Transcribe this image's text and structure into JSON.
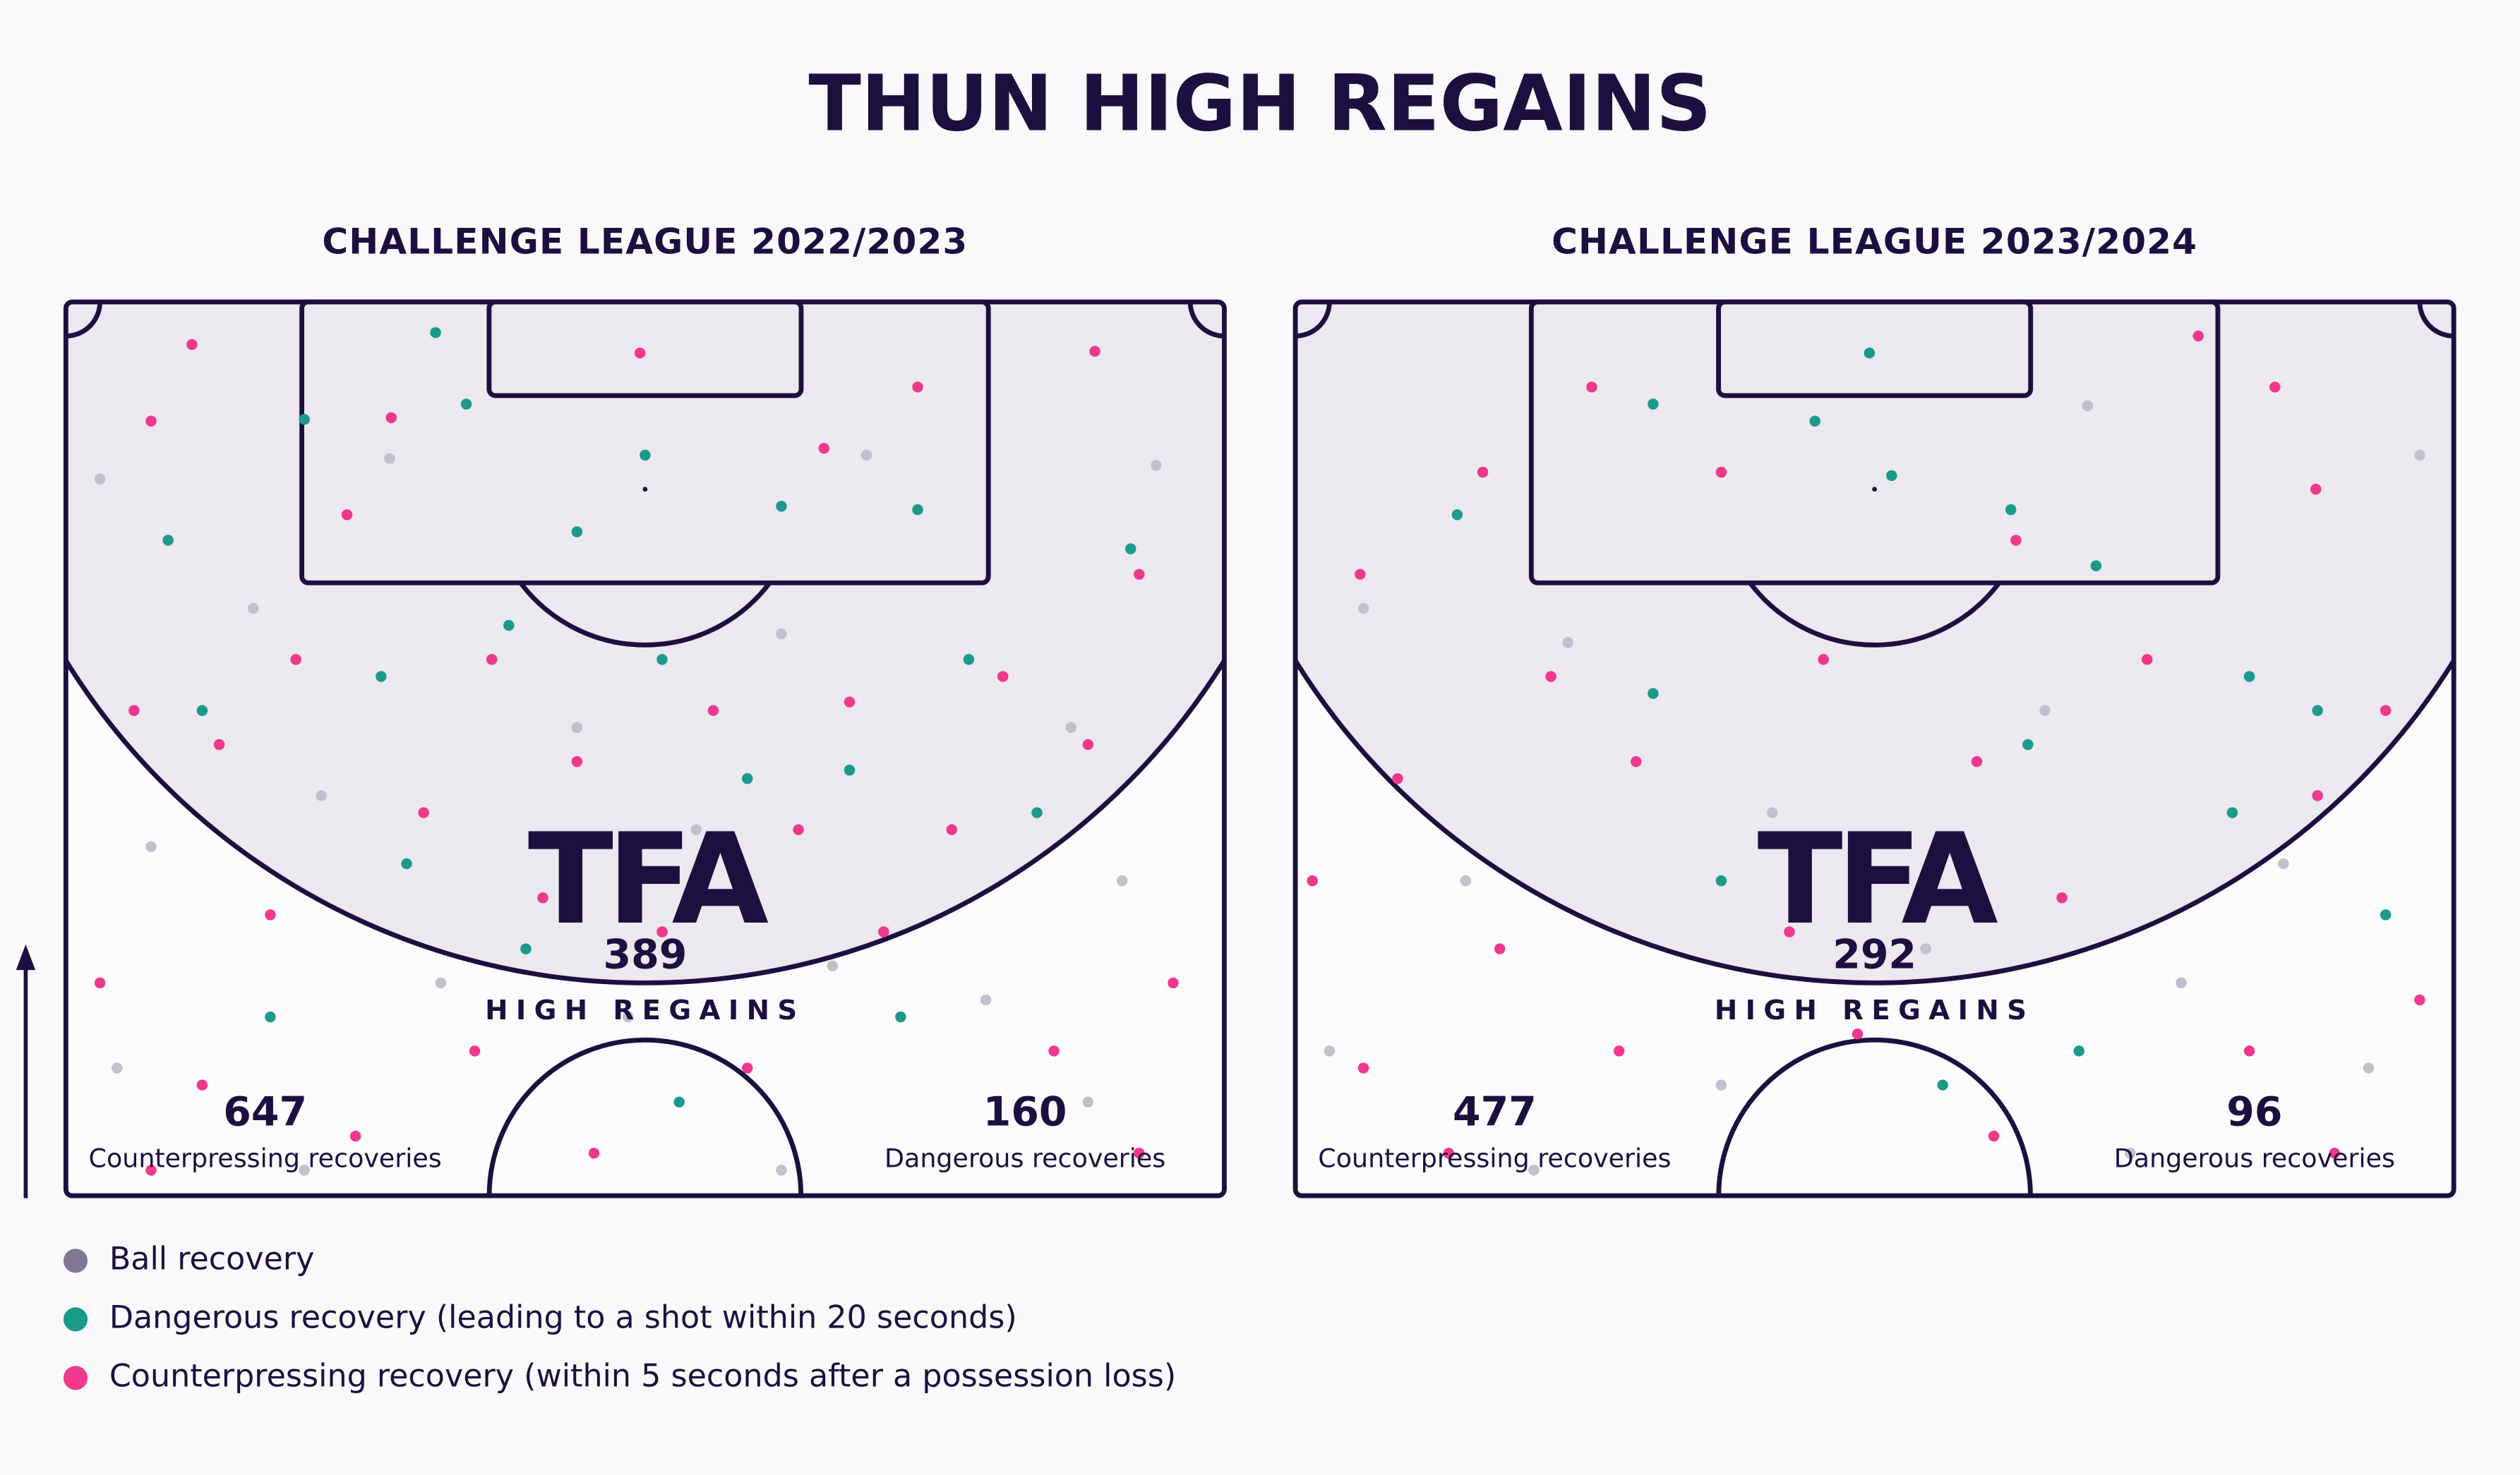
{
  "header": {
    "title": "THUN HIGH REGAINS"
  },
  "legend": [
    {
      "name": "Ball recovery",
      "color": "#c4bfcf"
    },
    {
      "name": "Dangerous recovery (leading to a shot within 20 seconds)",
      "color": "#1b9a8a"
    },
    {
      "name": "Counterpressing recovery (within 5 seconds after a possession loss)",
      "color": "#f0388c"
    }
  ],
  "logo": "TFA",
  "panels": [
    {
      "title": "CHALLENGE LEAGUE 2022/2023",
      "total": 389,
      "total_label": "HIGH REGAINS",
      "counterpressing": 647,
      "counterpressing_label": "Counterpressing recoveries",
      "dangerous": 160,
      "dangerous_label": "Dangerous recoveries",
      "points": [
        [
          [
            2,
            10.4
          ],
          [
            19,
            9.2
          ],
          [
            47,
            9
          ],
          [
            64,
            9.6
          ],
          [
            11,
            18
          ],
          [
            30,
            25
          ],
          [
            42,
            19.5
          ],
          [
            59,
            25
          ],
          [
            5,
            32
          ],
          [
            15,
            29
          ],
          [
            37,
            31
          ],
          [
            62,
            34
          ],
          [
            22,
            40
          ],
          [
            45,
            39
          ],
          [
            54,
            41
          ],
          [
            3,
            45
          ],
          [
            33,
            42
          ],
          [
            60,
            47
          ],
          [
            14,
            51
          ],
          [
            42,
            51
          ]
        ],
        [
          [
            21.7,
            1.8
          ],
          [
            14,
            6.9
          ],
          [
            23.5,
            6
          ],
          [
            34,
            9
          ],
          [
            42,
            12
          ],
          [
            30,
            13.5
          ],
          [
            50,
            12.2
          ],
          [
            6,
            14
          ],
          [
            62.5,
            14.5
          ],
          [
            26,
            19
          ],
          [
            35,
            21
          ],
          [
            53,
            21
          ],
          [
            8,
            24
          ],
          [
            18.5,
            22
          ],
          [
            40,
            28
          ],
          [
            46,
            27.5
          ],
          [
            57,
            30
          ],
          [
            20,
            33
          ],
          [
            27,
            38
          ],
          [
            49,
            42
          ],
          [
            36,
            47
          ],
          [
            12,
            42
          ]
        ],
        [
          [
            7.4,
            2.5
          ],
          [
            33.7,
            3
          ],
          [
            60.4,
            2.9
          ],
          [
            5,
            7
          ],
          [
            19.1,
            6.8
          ],
          [
            50,
            5
          ],
          [
            16.5,
            12.5
          ],
          [
            44.5,
            8.6
          ],
          [
            63,
            16
          ],
          [
            13.5,
            21
          ],
          [
            25,
            21
          ],
          [
            38,
            24
          ],
          [
            46,
            23.5
          ],
          [
            55,
            22
          ],
          [
            9,
            26
          ],
          [
            30,
            27
          ],
          [
            60,
            26
          ],
          [
            4,
            24
          ],
          [
            21,
            30
          ],
          [
            43,
            31
          ],
          [
            52,
            31
          ],
          [
            2,
            40
          ],
          [
            12,
            36
          ],
          [
            28,
            35
          ],
          [
            35,
            37
          ],
          [
            48,
            37
          ],
          [
            65,
            40
          ],
          [
            8,
            46
          ],
          [
            17,
            49
          ],
          [
            24,
            44
          ],
          [
            40,
            45
          ],
          [
            58,
            44
          ],
          [
            5,
            51
          ],
          [
            31,
            50
          ],
          [
            63,
            50
          ]
        ]
      ]
    },
    {
      "title": "CHALLENGE LEAGUE 2023/2024",
      "total": 292,
      "total_label": "HIGH REGAINS",
      "counterpressing": 477,
      "counterpressing_label": "Counterpressing recoveries",
      "dangerous": 96,
      "dangerous_label": "Dangerous recoveries",
      "points": [
        [
          [
            46.5,
            6.1
          ],
          [
            66,
            9
          ],
          [
            4,
            18
          ],
          [
            16,
            20
          ],
          [
            28,
            30
          ],
          [
            44,
            24
          ],
          [
            58,
            33
          ],
          [
            10,
            34
          ],
          [
            37,
            38
          ],
          [
            52,
            40
          ],
          [
            2,
            44
          ],
          [
            25,
            46
          ],
          [
            63,
            45
          ],
          [
            14,
            51
          ],
          [
            49,
            50
          ]
        ],
        [
          [
            33.7,
            3
          ],
          [
            30.5,
            7
          ],
          [
            35,
            10.2
          ],
          [
            21,
            6
          ],
          [
            9.5,
            12.5
          ],
          [
            42,
            12.2
          ],
          [
            47,
            15.5
          ],
          [
            56,
            22
          ],
          [
            21,
            23
          ],
          [
            43,
            26
          ],
          [
            60,
            24
          ],
          [
            25,
            34
          ],
          [
            55,
            30
          ],
          [
            64,
            36
          ],
          [
            38,
            46
          ],
          [
            46,
            44
          ]
        ],
        [
          [
            17.4,
            5
          ],
          [
            57.5,
            5
          ],
          [
            53,
            2
          ],
          [
            11,
            10
          ],
          [
            25,
            10
          ],
          [
            42.3,
            14
          ],
          [
            59.9,
            11
          ],
          [
            3.8,
            16
          ],
          [
            15,
            22
          ],
          [
            31,
            21
          ],
          [
            50,
            21
          ],
          [
            64,
            24
          ],
          [
            6,
            28
          ],
          [
            20,
            27
          ],
          [
            40,
            27
          ],
          [
            60,
            29
          ],
          [
            1,
            34
          ],
          [
            12,
            38
          ],
          [
            29,
            37
          ],
          [
            45,
            35
          ],
          [
            66,
            41
          ],
          [
            4,
            45
          ],
          [
            19,
            44
          ],
          [
            33,
            43
          ],
          [
            56,
            44
          ],
          [
            9,
            50
          ],
          [
            41,
            49
          ],
          [
            61,
            50
          ]
        ]
      ]
    }
  ]
}
